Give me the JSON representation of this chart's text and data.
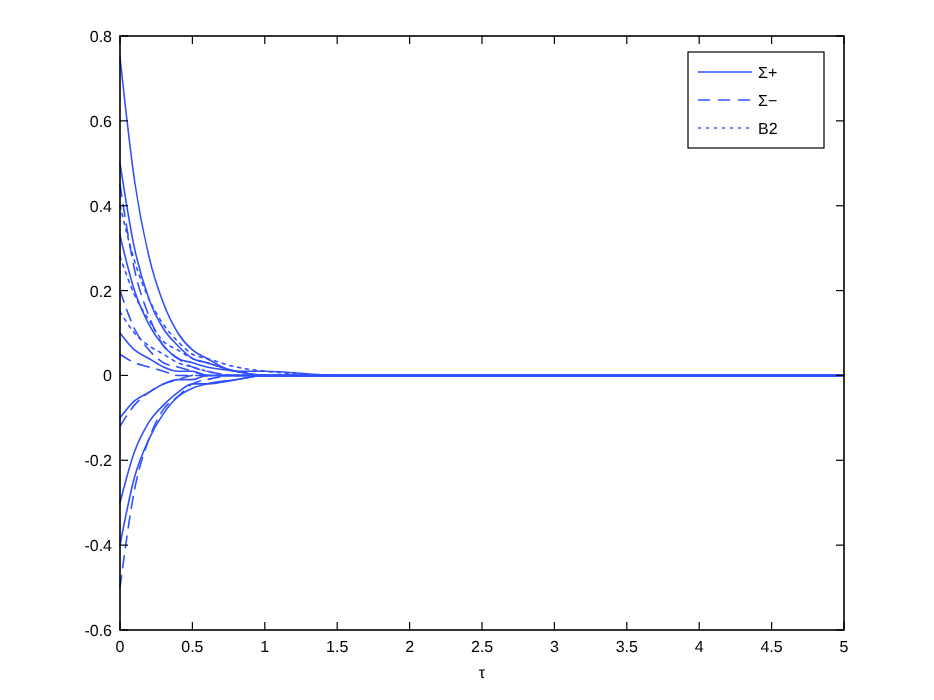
{
  "chart_data": {
    "type": "line",
    "xlabel": "τ",
    "x": [
      0,
      0.1,
      0.2,
      0.3,
      0.4,
      0.5,
      0.6,
      0.8,
      1,
      1.5,
      5
    ],
    "xlim": [
      0,
      5
    ],
    "xticks": [
      0,
      0.5,
      1,
      1.5,
      2,
      2.5,
      3,
      3.5,
      4,
      4.5,
      5
    ],
    "ylim": [
      -0.6,
      0.8
    ],
    "yticks": [
      -0.6,
      -0.4,
      -0.2,
      0,
      0.2,
      0.4,
      0.6,
      0.8
    ],
    "legend": "top right",
    "grid": false,
    "marker": "none",
    "series": [
      {
        "name": "Σ+",
        "color": "#3050ff",
        "line_style": "solid",
        "values": [
          0.75,
          0.46,
          0.28,
          0.17,
          0.1,
          0.06,
          0.04,
          0.01,
          0.01,
          0,
          0
        ]
      },
      {
        "name": "Σ−",
        "color": "#3050ff",
        "line_style": "dashed",
        "values": [
          0.45,
          0.25,
          0.14,
          0.07,
          0.04,
          0.02,
          0.01,
          0,
          0,
          0,
          0
        ]
      },
      {
        "name": "B2",
        "color": "#3050ff",
        "line_style": "dotted",
        "values": [
          0.4,
          0.27,
          0.18,
          0.12,
          0.08,
          0.05,
          0.04,
          0.02,
          0.01,
          0,
          0
        ]
      },
      {
        "color": "#3050ff",
        "line_style": "solid",
        "values": [
          0.5,
          0.3,
          0.18,
          0.11,
          0.07,
          0.04,
          0.03,
          0.01,
          0,
          0,
          0
        ]
      },
      {
        "color": "#3050ff",
        "line_style": "solid",
        "values": [
          0.33,
          0.2,
          0.12,
          0.07,
          0.04,
          0.03,
          0.02,
          0.01,
          0,
          0,
          0
        ]
      },
      {
        "color": "#3050ff",
        "line_style": "solid",
        "values": [
          0.1,
          0.06,
          0.04,
          0.02,
          0.01,
          0.01,
          0,
          0,
          0,
          0,
          0
        ]
      },
      {
        "color": "#3050ff",
        "line_style": "solid",
        "values": [
          -0.1,
          -0.06,
          -0.04,
          -0.02,
          -0.01,
          -0.01,
          0,
          0,
          0,
          0,
          0
        ]
      },
      {
        "color": "#3050ff",
        "line_style": "solid",
        "values": [
          -0.3,
          -0.18,
          -0.11,
          -0.07,
          -0.04,
          -0.02,
          -0.02,
          -0.01,
          0,
          0,
          0
        ]
      },
      {
        "color": "#3050ff",
        "line_style": "solid",
        "values": [
          -0.4,
          -0.24,
          -0.15,
          -0.09,
          -0.05,
          -0.03,
          -0.02,
          -0.01,
          0,
          0,
          0
        ]
      },
      {
        "color": "#3050ff",
        "line_style": "dashed",
        "values": [
          0.2,
          0.11,
          0.06,
          0.03,
          0.02,
          0.01,
          0,
          0,
          0,
          0,
          0
        ]
      },
      {
        "color": "#3050ff",
        "line_style": "dashed",
        "values": [
          0.05,
          0.03,
          0.02,
          0.01,
          0,
          0,
          0,
          0,
          0,
          0,
          0
        ]
      },
      {
        "color": "#3050ff",
        "line_style": "dashed",
        "values": [
          -0.12,
          -0.07,
          -0.04,
          -0.02,
          -0.01,
          0,
          0,
          0,
          0,
          0,
          0
        ]
      },
      {
        "color": "#3050ff",
        "line_style": "dashed",
        "values": [
          -0.5,
          -0.27,
          -0.15,
          -0.08,
          -0.05,
          -0.02,
          -0.01,
          0,
          0,
          0,
          0
        ]
      },
      {
        "color": "#3050ff",
        "line_style": "dotted",
        "values": [
          0.28,
          0.19,
          0.13,
          0.08,
          0.06,
          0.04,
          0.03,
          0.01,
          0,
          0,
          0
        ]
      },
      {
        "color": "#3050ff",
        "line_style": "dotted",
        "values": [
          0.15,
          0.1,
          0.07,
          0.05,
          0.03,
          0.02,
          0.01,
          0,
          0,
          0,
          0
        ]
      }
    ]
  }
}
